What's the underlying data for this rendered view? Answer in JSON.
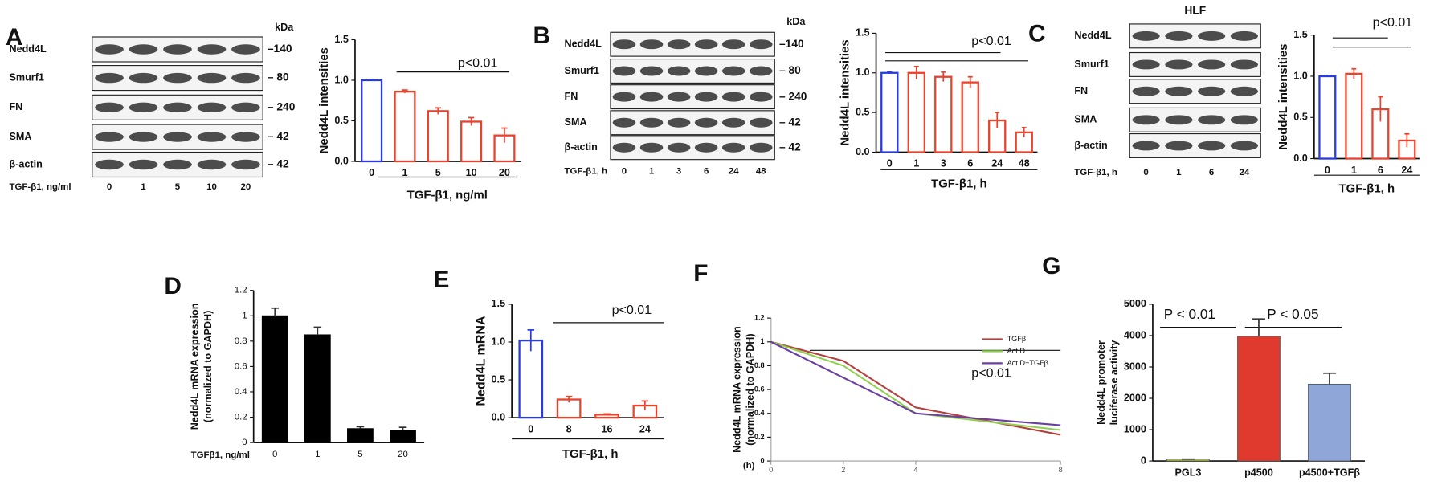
{
  "blots": [
    {
      "panel": "A",
      "rows": [
        "Nedd4L",
        "Smurf1",
        "FN",
        "SMA",
        "β-actin"
      ],
      "kda_header": "kDa",
      "kda": [
        "–140",
        "– 80",
        "– 240",
        "– 42",
        "– 42"
      ],
      "xlabel": "TGF-β1,  ng/ml",
      "lanes": [
        "0",
        "1",
        "5",
        "10",
        "20"
      ]
    },
    {
      "panel": "B",
      "rows": [
        "Nedd4L",
        "Smurf1",
        "FN",
        "SMA",
        "β-actin"
      ],
      "kda_header": "kDa",
      "kda": [
        "–140",
        "– 80",
        "– 240",
        "– 42",
        "– 42"
      ],
      "xlabel": "TGF-β1, h",
      "lanes": [
        "0",
        "1",
        "3",
        "6",
        "24",
        "48"
      ]
    },
    {
      "panel": "C",
      "title": "HLF",
      "rows": [
        "Nedd4L",
        "Smurf1",
        "FN",
        "SMA",
        "β-actin"
      ],
      "xlabel": "TGF-β1, h",
      "lanes": [
        "0",
        "1",
        "6",
        "24"
      ]
    }
  ],
  "chart_data": [
    {
      "type": "bar",
      "bar_style": "outline",
      "ylabel": [
        "Nedd4L intensities"
      ],
      "xlabel": "TGF-β1,  ng/ml",
      "annotations": [
        "p<0.01"
      ],
      "categories": [
        "0",
        "1",
        "5",
        "10",
        "20"
      ],
      "values": [
        1.0,
        0.86,
        0.62,
        0.49,
        0.32
      ],
      "errors": [
        0.01,
        0.02,
        0.04,
        0.05,
        0.09
      ],
      "colors": [
        "#2a3be0",
        "#e8432d",
        "#e8432d",
        "#e8432d",
        "#e8432d"
      ],
      "ylim": [
        0,
        1.5
      ],
      "yticks": [
        {
          "value": 0,
          "label": "0.0"
        },
        {
          "value": 0.5,
          "label": "0.5"
        },
        {
          "value": 1.0,
          "label": "1.0"
        },
        {
          "value": 1.5,
          "label": "1.5"
        }
      ]
    },
    {
      "type": "bar",
      "bar_style": "outline",
      "ylabel": [
        "Nedd4L intensities"
      ],
      "xlabel": "TGF-β1,  h",
      "annotations": [
        "p<0.01"
      ],
      "categories": [
        "0",
        "1",
        "3",
        "6",
        "24",
        "48"
      ],
      "values": [
        1.0,
        1.0,
        0.95,
        0.88,
        0.4,
        0.25
      ],
      "errors": [
        0.01,
        0.08,
        0.06,
        0.07,
        0.1,
        0.06
      ],
      "colors": [
        "#2a3be0",
        "#e8432d",
        "#e8432d",
        "#e8432d",
        "#e8432d",
        "#e8432d"
      ],
      "ylim": [
        0,
        1.5
      ],
      "yticks": [
        {
          "value": 0,
          "label": "0.0"
        },
        {
          "value": 0.5,
          "label": "0.5"
        },
        {
          "value": 1.0,
          "label": "1.0"
        },
        {
          "value": 1.5,
          "label": "1.5"
        }
      ]
    },
    {
      "type": "bar",
      "bar_style": "outline",
      "ylabel": [
        "Nedd4L intensities"
      ],
      "xlabel": "TGF-β1,  h",
      "annotations": [
        "p<0.01"
      ],
      "categories": [
        "0",
        "1",
        "6",
        "24"
      ],
      "values": [
        1.0,
        1.03,
        0.6,
        0.22
      ],
      "errors": [
        0.01,
        0.06,
        0.15,
        0.08
      ],
      "colors": [
        "#2a3be0",
        "#e8432d",
        "#e8432d",
        "#e8432d"
      ],
      "ylim": [
        0,
        1.5
      ],
      "yticks": [
        {
          "value": 0,
          "label": "0.0"
        },
        {
          "value": 0.5,
          "label": "0.5"
        },
        {
          "value": 1.0,
          "label": "1.0"
        },
        {
          "value": 1.5,
          "label": "1.5"
        }
      ]
    },
    {
      "type": "bar",
      "bar_style": "solid",
      "panel": "D",
      "ylabel": [
        "Nedd4L mRNA expression",
        "(normalized to GAPDH)"
      ],
      "xlabel": "TGFβ1, ng/ml",
      "categories": [
        "0",
        "1",
        "5",
        "20"
      ],
      "values": [
        1.0,
        0.85,
        0.11,
        0.095
      ],
      "errors": [
        0.06,
        0.06,
        0.015,
        0.025
      ],
      "colors": [
        "#000000",
        "#000000",
        "#000000",
        "#000000"
      ],
      "ylim": [
        0,
        1.2
      ],
      "yticks": [
        0,
        0.2,
        0.4,
        0.6,
        0.8,
        1,
        1.2
      ]
    },
    {
      "type": "bar",
      "bar_style": "outline",
      "panel": "E",
      "ylabel": [
        "Nedd4L mRNA"
      ],
      "xlabel": "TGF-β1,  h",
      "annotations": [
        "p<0.01"
      ],
      "categories": [
        "0",
        "8",
        "16",
        "24"
      ],
      "values": [
        1.02,
        0.24,
        0.04,
        0.16
      ],
      "errors": [
        0.14,
        0.04,
        0.01,
        0.06
      ],
      "colors": [
        "#2a3be0",
        "#e8432d",
        "#e8432d",
        "#e8432d"
      ],
      "ylim": [
        0,
        1.5
      ],
      "yticks": [
        {
          "value": 0,
          "label": "0.0"
        },
        {
          "value": 0.5,
          "label": "0.5"
        },
        {
          "value": 1.0,
          "label": "1.0"
        },
        {
          "value": 1.5,
          "label": "1.5"
        }
      ]
    },
    {
      "type": "line",
      "panel": "F",
      "ylabel": [
        "Nedd4L mRNA expression",
        "(normalized to GAPDH)"
      ],
      "xlabel": "(h)",
      "annotations": [
        "p<0.01"
      ],
      "x": [
        0,
        2,
        4,
        8
      ],
      "xlim": [
        0,
        8
      ],
      "xticks": [
        0,
        2,
        4,
        8
      ],
      "ylim": [
        0,
        1.2
      ],
      "yticks": [
        0,
        0.2,
        0.4,
        0.6,
        0.8,
        1,
        1.2
      ],
      "series": [
        {
          "name": "TGFβ",
          "color": "#b5413f",
          "values": [
            1,
            0.84,
            0.45,
            0.22
          ]
        },
        {
          "name": "Act D",
          "color": "#8fd04f",
          "values": [
            1,
            0.8,
            0.4,
            0.26
          ]
        },
        {
          "name": "Act D+TGFβ",
          "color": "#6a3fa0",
          "values": [
            1,
            0.7,
            0.4,
            0.3
          ]
        }
      ]
    },
    {
      "type": "bar",
      "bar_style": "solid",
      "panel": "G",
      "ylabel": [
        "Nedd4L promoter",
        "luciferase activity"
      ],
      "annotations": [
        "P < 0.01",
        "P < 0.05"
      ],
      "categories": [
        "PGL3",
        "p4500",
        "p4500+TGFβ"
      ],
      "values": [
        60,
        3980,
        2450
      ],
      "errors": [
        0,
        550,
        350
      ],
      "colors": [
        "#b5c94a",
        "#e03a2e",
        "#8fa6d8"
      ],
      "ylim": [
        0,
        5000
      ],
      "yticks": [
        0,
        1000,
        2000,
        3000,
        4000,
        5000
      ]
    }
  ]
}
